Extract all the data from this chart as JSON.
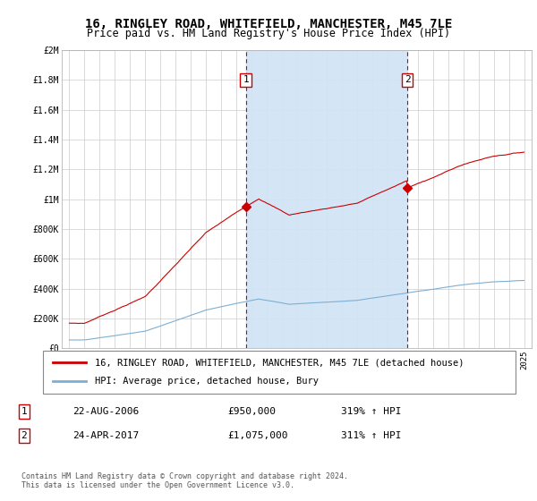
{
  "title1": "16, RINGLEY ROAD, WHITEFIELD, MANCHESTER, M45 7LE",
  "title2": "Price paid vs. HM Land Registry's House Price Index (HPI)",
  "legend_label1": "16, RINGLEY ROAD, WHITEFIELD, MANCHESTER, M45 7LE (detached house)",
  "legend_label2": "HPI: Average price, detached house, Bury",
  "footnote": "Contains HM Land Registry data © Crown copyright and database right 2024.\nThis data is licensed under the Open Government Licence v3.0.",
  "sale1_label": "1",
  "sale1_date": "22-AUG-2006",
  "sale1_price": "£950,000",
  "sale1_hpi": "319% ↑ HPI",
  "sale2_label": "2",
  "sale2_date": "24-APR-2017",
  "sale2_price": "£1,075,000",
  "sale2_hpi": "311% ↑ HPI",
  "vline1_x": 2006.64,
  "vline2_x": 2017.31,
  "sale1_y": 950000,
  "sale2_y": 1075000,
  "hpi_line_color": "#7bafd4",
  "price_line_color": "#cc0000",
  "vline_color": "#cc0000",
  "shade_color": "#d0e4f5",
  "plot_bg": "#ffffff",
  "grid_color": "#cccccc",
  "ylim_min": 0,
  "ylim_max": 2000000,
  "xlim_min": 1994.5,
  "xlim_max": 2025.5,
  "yticks": [
    0,
    200000,
    400000,
    600000,
    800000,
    1000000,
    1200000,
    1400000,
    1600000,
    1800000,
    2000000
  ],
  "ytick_labels": [
    "£0",
    "£200K",
    "£400K",
    "£600K",
    "£800K",
    "£1M",
    "£1.2M",
    "£1.4M",
    "£1.6M",
    "£1.8M",
    "£2M"
  ],
  "xticks": [
    1995,
    1996,
    1997,
    1998,
    1999,
    2000,
    2001,
    2002,
    2003,
    2004,
    2005,
    2006,
    2007,
    2008,
    2009,
    2010,
    2011,
    2012,
    2013,
    2014,
    2015,
    2016,
    2017,
    2018,
    2019,
    2020,
    2021,
    2022,
    2023,
    2024,
    2025
  ]
}
